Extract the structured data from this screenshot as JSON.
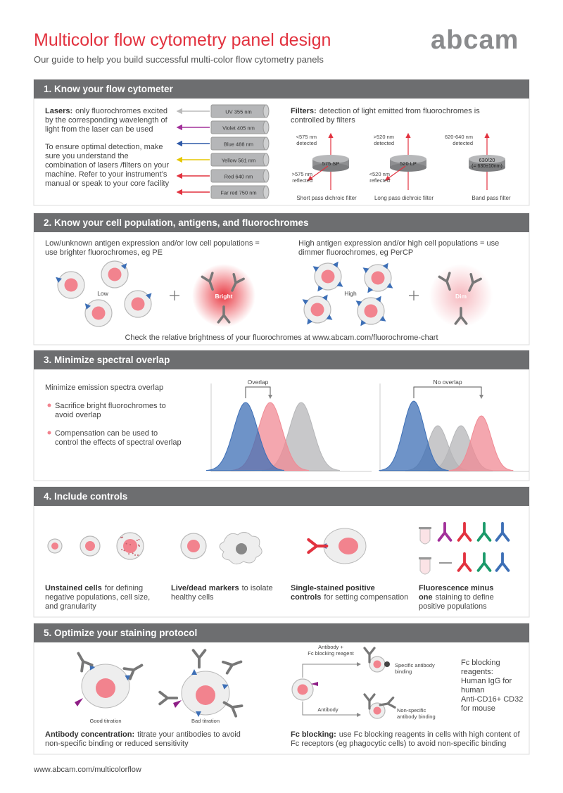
{
  "header": {
    "title": "Multicolor flow cytometry panel design",
    "subtitle": "Our guide to help you build successful multi-color flow cytometry panels",
    "logo": "abcam"
  },
  "sections": [
    {
      "heading": "1. Know your flow cytometer",
      "lasers_lead": "Lasers:",
      "lasers_text": "only fluorochromes excited by the corresponding wavelength of light from the laser can be used",
      "detection_text": "To ensure optimal detection, make sure you understand the combination of lasers /filters on your machine. Refer to your instrument’s manual or speak to your core facility",
      "lasers": [
        "UV 355 nm",
        "Violet 405 nm",
        "Blue 488 nm",
        "Yellow 561 nm",
        "Red 640 nm",
        "Far red 750 nm"
      ],
      "filters_lead": "Filters:",
      "filters_text": "detection of light emitted from fluorochromes is controlled by filters",
      "filters": [
        {
          "detected": [
            "<575 nm",
            "detected"
          ],
          "label": "575 SP",
          "reflected": [
            ">575 nm",
            "reflected"
          ],
          "name": "Short pass dichroic filter"
        },
        {
          "detected": [
            ">520 nm",
            "detected"
          ],
          "label": "520 LP",
          "reflected": [
            "<520 nm",
            "reflected"
          ],
          "name": "Long pass dichroic filter"
        },
        {
          "detected": [
            "620-640 nm",
            "detected"
          ],
          "label": "630/20",
          "label_note": "(= 630±10nm)",
          "name": "Band pass filter"
        }
      ]
    },
    {
      "heading": "2. Know your cell population, antigens, and fluorochromes",
      "low_text": "Low/unknown antigen expression and/or low cell populations = use brighter fluorochromes, eg PE",
      "low_label": "Low",
      "bright_label": "Bright",
      "high_text": "High antigen expression and/or high cell populations = use dimmer fluorochromes, eg PerCP",
      "high_label": "High",
      "dim_label": "Dim",
      "note": "Check the relative brightness of your fluorochromes at www.abcam.com/fluorochrome-chart"
    },
    {
      "heading": "3. Minimize spectral overlap",
      "subheading": "Minimize emission spectra overlap",
      "bullets": [
        "Sacrifice bright fluorochromes to avoid overlap",
        "Compensation can be used to control the effects of spectral overlap"
      ],
      "charts": [
        "Overlap",
        "No overlap"
      ]
    },
    {
      "heading": "4. Include controls",
      "controls": [
        {
          "lead": "Unstained cells",
          "text": "for defining negative populations, cell size, and granularity"
        },
        {
          "lead": "Live/dead markers",
          "text": "to isolate healthy cells"
        },
        {
          "lead": "Single-stained positive controls",
          "text": "for setting compensation"
        },
        {
          "lead": "Fluorescence minus one",
          "text": "staining to define positive populations"
        }
      ]
    },
    {
      "heading": "5. Optimize your staining protocol",
      "good_label": "Good titration",
      "bad_label": "Bad titration",
      "concentration_lead": "Antibody concentration:",
      "concentration_text": "titrate your antibodies to avoid non-specific binding or reduced sensitivity",
      "fc_labels": {
        "with_blocking": [
          "Antibody +",
          "Fc blocking reagent"
        ],
        "specific": [
          "Specific antibody",
          "binding"
        ],
        "antibody": "Antibody",
        "nonspecific": [
          "Non-specific",
          "antibody binding"
        ]
      },
      "reagents_title": "Fc blocking reagents:",
      "reagents": [
        "Human IgG for human",
        "Anti-CD16+ CD32 for mouse"
      ],
      "fc_lead": "Fc blocking:",
      "fc_text": "use Fc blocking reagents in cells with high content of Fc receptors (eg phagocytic cells) to avoid non-specific binding"
    }
  ],
  "footer": {
    "url": "www.abcam.com/multicolorflow"
  }
}
